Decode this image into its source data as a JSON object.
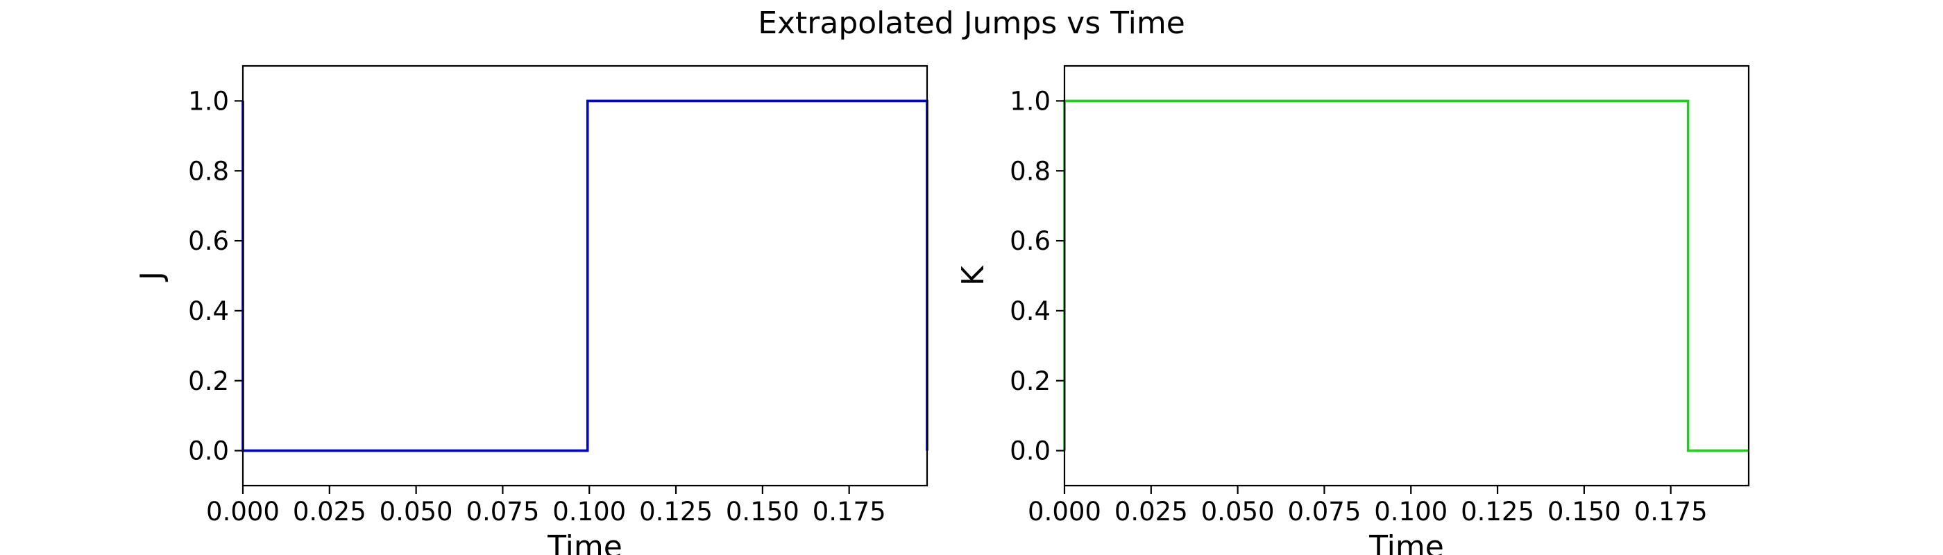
{
  "figure": {
    "title": "Extrapolated Jumps vs Time"
  },
  "chart_data": [
    {
      "type": "line",
      "step": true,
      "title": "",
      "xlabel": "Time",
      "ylabel": "J",
      "xlim": [
        0,
        0.1975
      ],
      "ylim": [
        -0.1,
        1.1
      ],
      "xticks": [
        0.0,
        0.025,
        0.05,
        0.075,
        0.1,
        0.125,
        0.15,
        0.175
      ],
      "xtick_labels": [
        "0.000",
        "0.025",
        "0.050",
        "0.075",
        "0.100",
        "0.125",
        "0.150",
        "0.175"
      ],
      "yticks": [
        0.0,
        0.2,
        0.4,
        0.6,
        0.8,
        1.0
      ],
      "ytick_labels": [
        "0.0",
        "0.2",
        "0.4",
        "0.6",
        "0.8",
        "1.0"
      ],
      "grid": false,
      "series": [
        {
          "name": "",
          "color": "#0000cc",
          "x": [
            0,
            0,
            0.0995,
            0.0995,
            0.1975,
            0.1975
          ],
          "y": [
            1,
            0,
            0,
            1,
            1,
            0
          ]
        }
      ]
    },
    {
      "type": "line",
      "step": true,
      "title": "",
      "xlabel": "Time",
      "ylabel": "K",
      "xlim": [
        0,
        0.1975
      ],
      "ylim": [
        -0.1,
        1.1
      ],
      "xticks": [
        0.0,
        0.025,
        0.05,
        0.075,
        0.1,
        0.125,
        0.15,
        0.175
      ],
      "xtick_labels": [
        "0.000",
        "0.025",
        "0.050",
        "0.075",
        "0.100",
        "0.125",
        "0.150",
        "0.175"
      ],
      "yticks": [
        0.0,
        0.2,
        0.4,
        0.6,
        0.8,
        1.0
      ],
      "ytick_labels": [
        "0.0",
        "0.2",
        "0.4",
        "0.6",
        "0.8",
        "1.0"
      ],
      "grid": false,
      "series": [
        {
          "name": "",
          "color": "#22cc22",
          "x": [
            0,
            0,
            0.18,
            0.18,
            0.1975
          ],
          "y": [
            0,
            1,
            1,
            0,
            0
          ]
        }
      ]
    }
  ]
}
